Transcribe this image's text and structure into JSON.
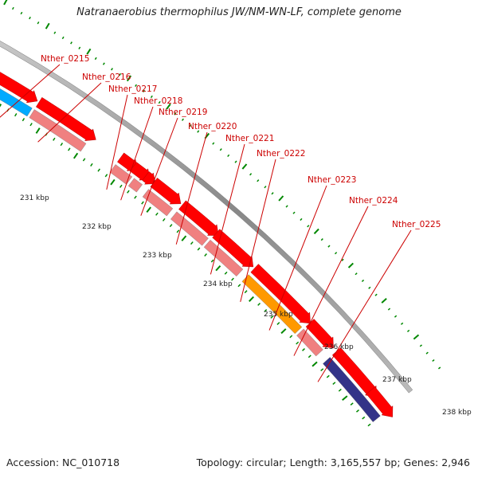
{
  "title": "Natranaerobius thermophilus JW/NM-WN-LF, complete genome",
  "footer": {
    "accession": "Accession: NC_010718",
    "topology": "Topology: circular; Length: 3,165,557 bp; Genes: 2,946"
  },
  "colors": {
    "cds": "#ff0000",
    "backbone": "#999999",
    "tick": "#008800",
    "gene_label": "#cc0000",
    "cog_pink": "#f08080",
    "cog_orange": "#ff9900",
    "cog_blue": "#00aaff",
    "cog_green": "#99ff00",
    "cog_purple": "#333388"
  },
  "genes": [
    {
      "label": "Nther_0215"
    },
    {
      "label": "Nther_0216"
    },
    {
      "label": "Nther_0217"
    },
    {
      "label": "Nther_0218"
    },
    {
      "label": "Nther_0219"
    },
    {
      "label": "Nther_0220"
    },
    {
      "label": "Nther_0221"
    },
    {
      "label": "Nther_0222"
    },
    {
      "label": "Nther_0223"
    },
    {
      "label": "Nther_0224"
    },
    {
      "label": "Nther_0225"
    }
  ],
  "scale_labels": [
    "231 kbp",
    "232 kbp",
    "233 kbp",
    "234 kbp",
    "235 kbp",
    "236 kbp",
    "237 kbp",
    "238 kbp"
  ]
}
